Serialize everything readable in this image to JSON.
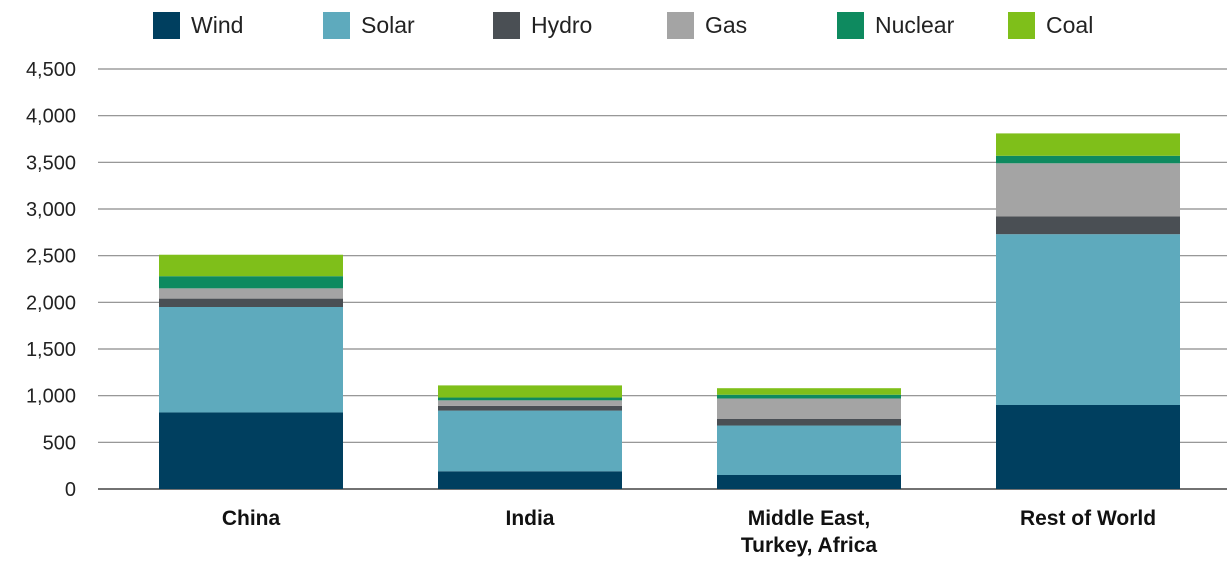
{
  "chart_data": {
    "type": "bar",
    "stacked": true,
    "categories": [
      [
        "China"
      ],
      [
        "India"
      ],
      [
        "Middle East,",
        "Turkey, Africa"
      ],
      [
        "Rest of World"
      ]
    ],
    "series": [
      {
        "name": "Wind",
        "color": "#003f5f",
        "values": [
          820,
          190,
          150,
          900
        ]
      },
      {
        "name": "Solar",
        "color": "#5eaabd",
        "values": [
          1130,
          650,
          530,
          1830
        ]
      },
      {
        "name": "Hydro",
        "color": "#4a4f54",
        "values": [
          90,
          50,
          70,
          190
        ]
      },
      {
        "name": "Gas",
        "color": "#a4a4a4",
        "values": [
          110,
          60,
          220,
          570
        ]
      },
      {
        "name": "Nuclear",
        "color": "#0e8a5f",
        "values": [
          130,
          30,
          40,
          80
        ]
      },
      {
        "name": "Coal",
        "color": "#7fbf1a",
        "values": [
          230,
          130,
          70,
          240
        ]
      }
    ],
    "y_ticks": [
      "0",
      "500",
      "1,000",
      "1,500",
      "2,000",
      "2,500",
      "3,000",
      "3,500",
      "4,000",
      "4,500"
    ],
    "ylim": [
      0,
      4500
    ],
    "grid": true,
    "legend_position": "top"
  }
}
